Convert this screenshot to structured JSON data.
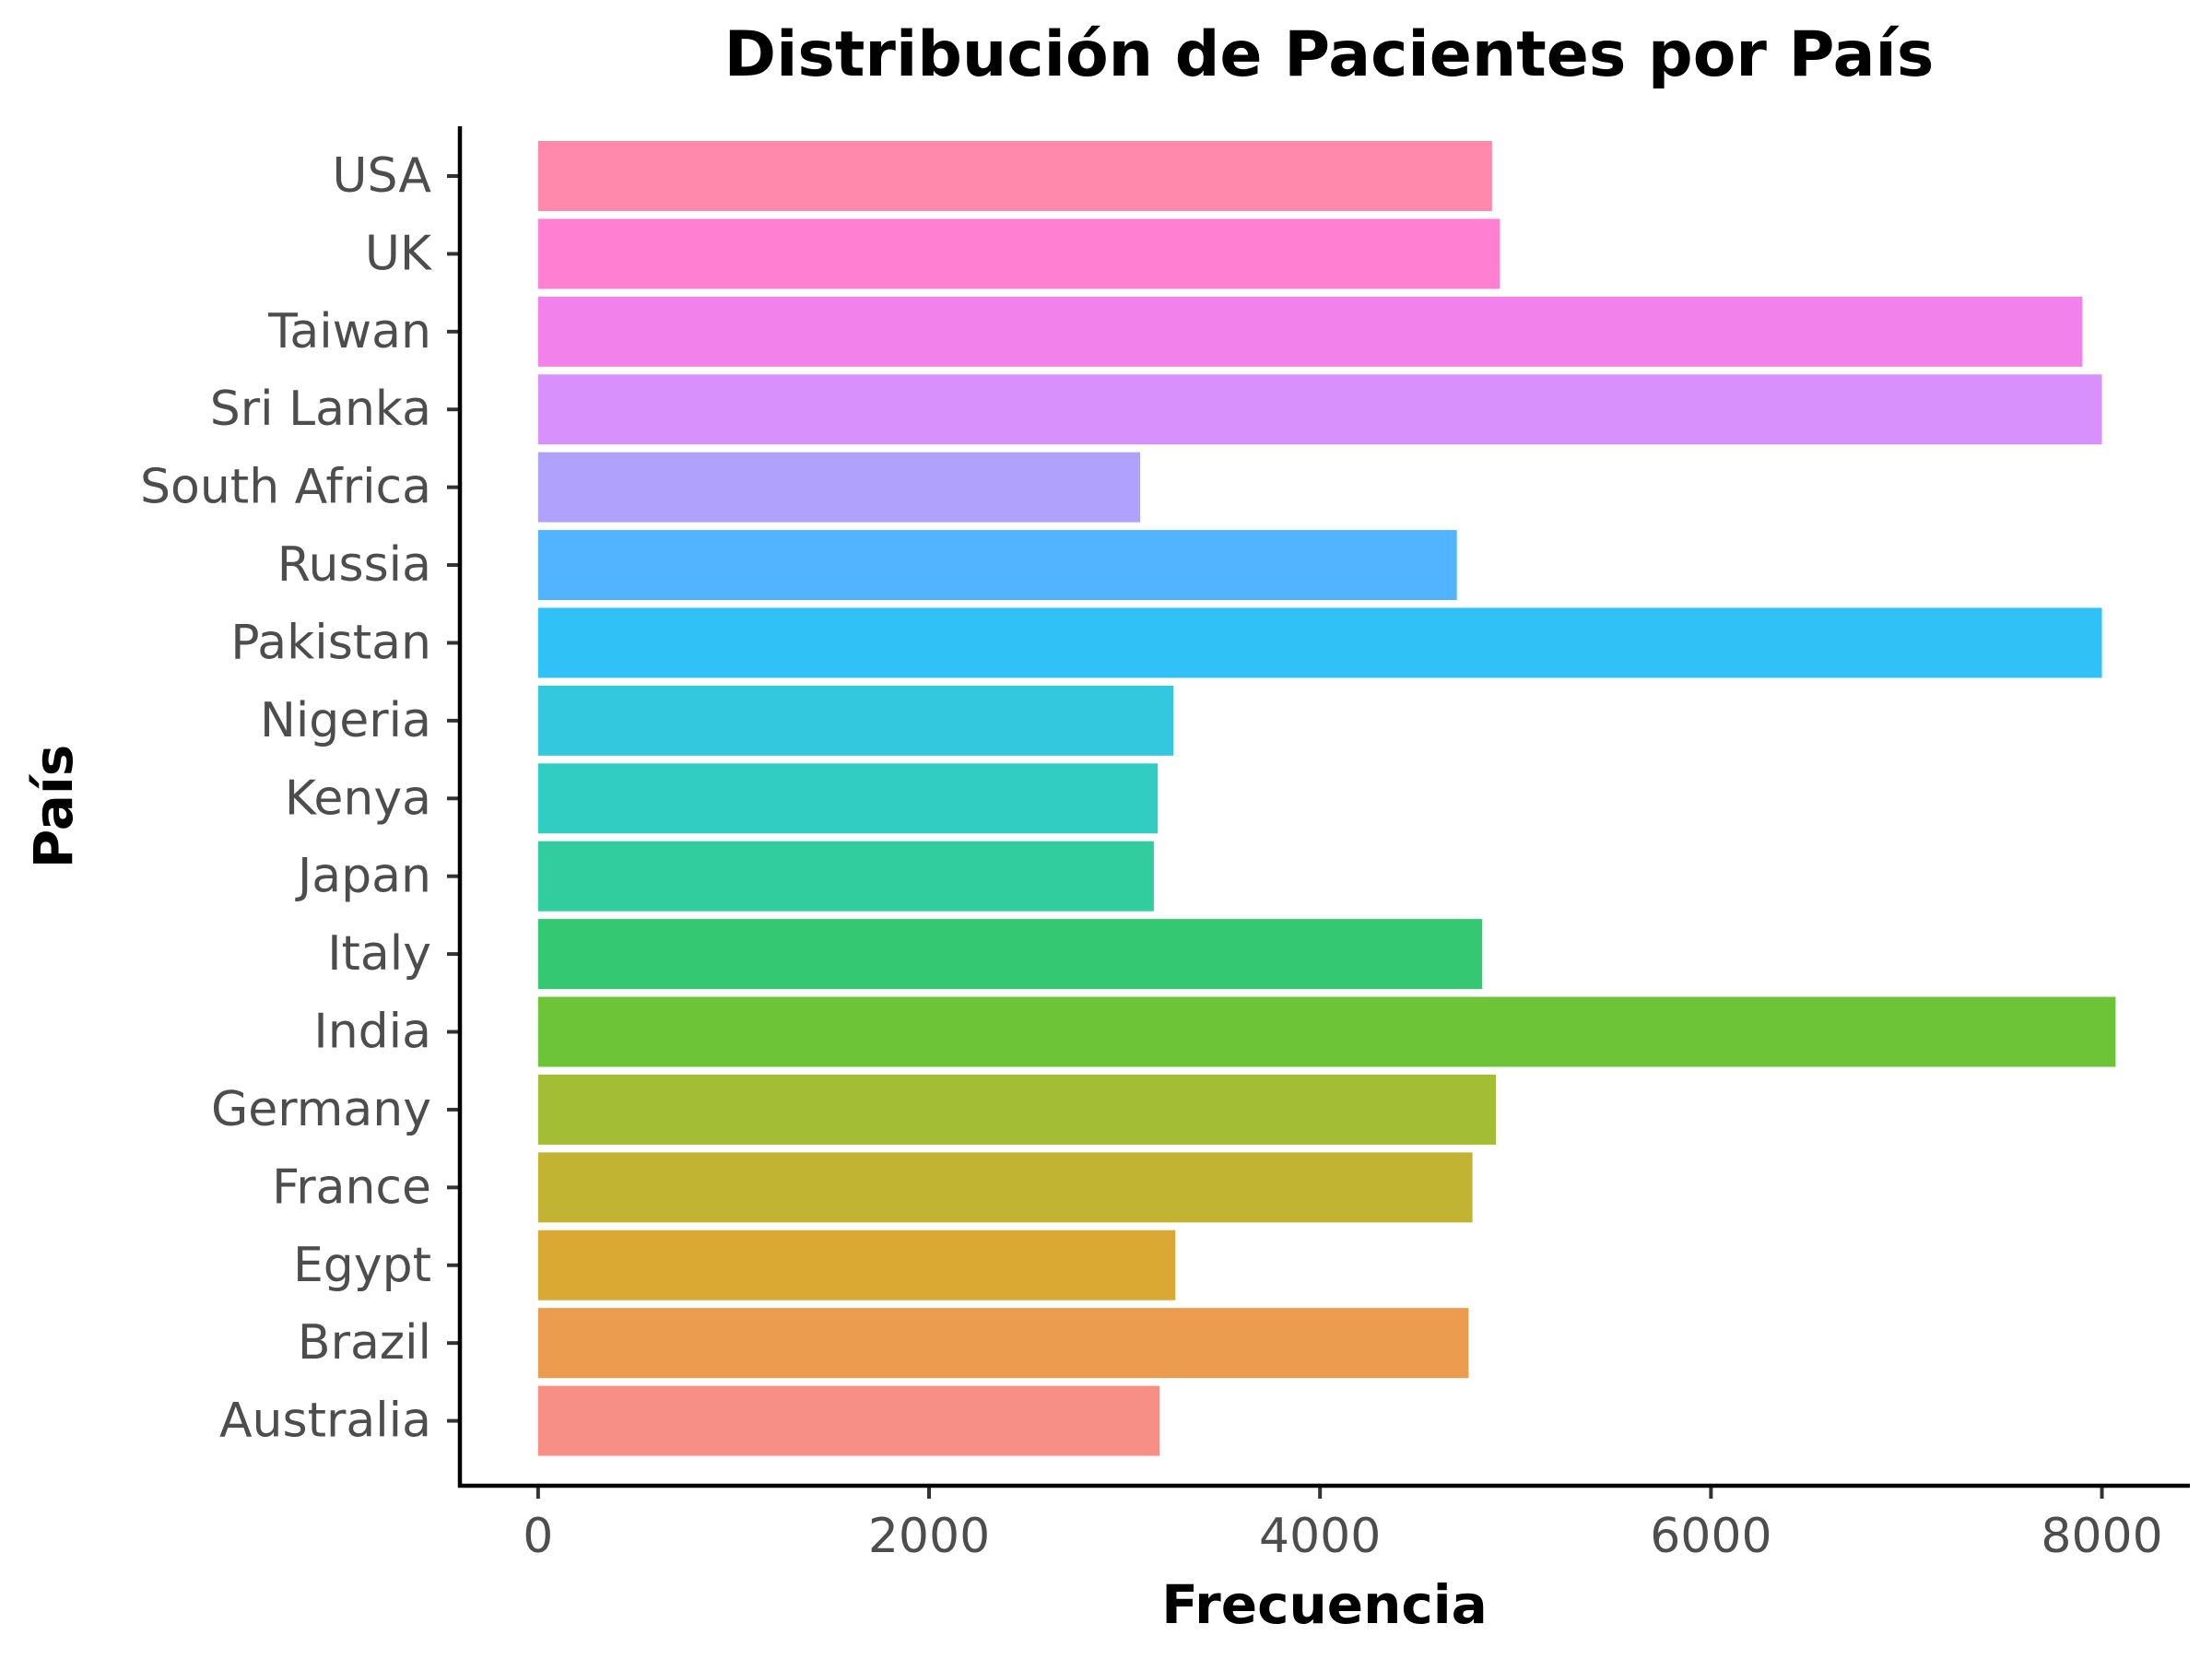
{
  "chart_data": {
    "type": "bar",
    "orientation": "horizontal",
    "title": "Distribución de Pacientes por País",
    "xlabel": "Frecuencia",
    "ylabel": "País",
    "xlim": [
      -400,
      8450
    ],
    "xticks": [
      0,
      2000,
      4000,
      6000,
      8000
    ],
    "categories": [
      "USA",
      "UK",
      "Taiwan",
      "Sri Lanka",
      "South Africa",
      "Russia",
      "Pakistan",
      "Nigeria",
      "Kenya",
      "Japan",
      "Italy",
      "India",
      "Germany",
      "France",
      "Egypt",
      "Brazil",
      "Australia"
    ],
    "values": [
      4880,
      4920,
      7900,
      8000,
      3080,
      4700,
      8000,
      3250,
      3170,
      3150,
      4830,
      8070,
      4900,
      4780,
      3260,
      4760,
      3180
    ],
    "colors": [
      "#FF88AD",
      "#FF80D3",
      "#F381EB",
      "#D890FC",
      "#B0A1FC",
      "#52B3FF",
      "#30C2F6",
      "#34C8DF",
      "#31CCC2",
      "#32CD9F",
      "#35C872",
      "#6DC436",
      "#A3BD35",
      "#C2B433",
      "#D9A934",
      "#EB9C4E",
      "#F88F87"
    ],
    "grid": false,
    "legend": "none"
  }
}
